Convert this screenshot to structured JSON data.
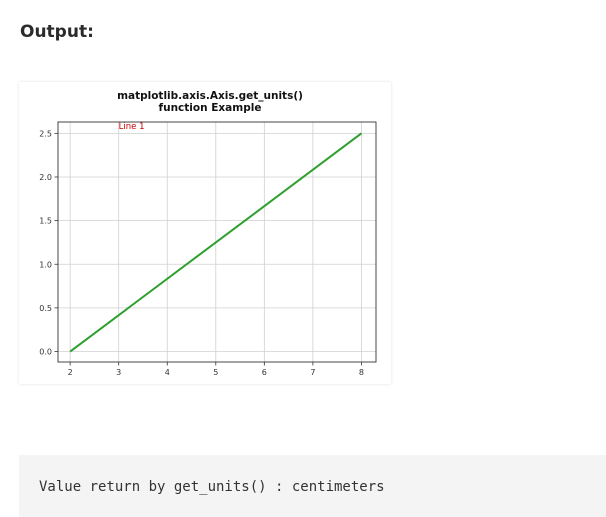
{
  "heading": "Output:",
  "chart_data": {
    "type": "line",
    "title_lines": [
      "matplotlib.axis.Axis.get_units()",
      "function Example"
    ],
    "xlabel": "",
    "ylabel": "",
    "x_ticks": [
      2,
      3,
      4,
      5,
      6,
      7,
      8
    ],
    "y_ticks": [
      0.0,
      0.5,
      1.0,
      1.5,
      2.0,
      2.5
    ],
    "y_tick_labels": [
      "0.0",
      "0.5",
      "1.0",
      "1.5",
      "2.0",
      "2.5"
    ],
    "xlim": [
      1.75,
      8.3
    ],
    "ylim": [
      -0.12,
      2.63
    ],
    "grid": true,
    "series": [
      {
        "x": [
          2,
          8
        ],
        "y": [
          0,
          2.5
        ],
        "color": "#2ca02c"
      }
    ],
    "annotation": {
      "text": "Line 1",
      "x": 3,
      "y": 2.55,
      "color": "#cc0000"
    }
  },
  "console_output": "Value return by get_units() : centimeters"
}
